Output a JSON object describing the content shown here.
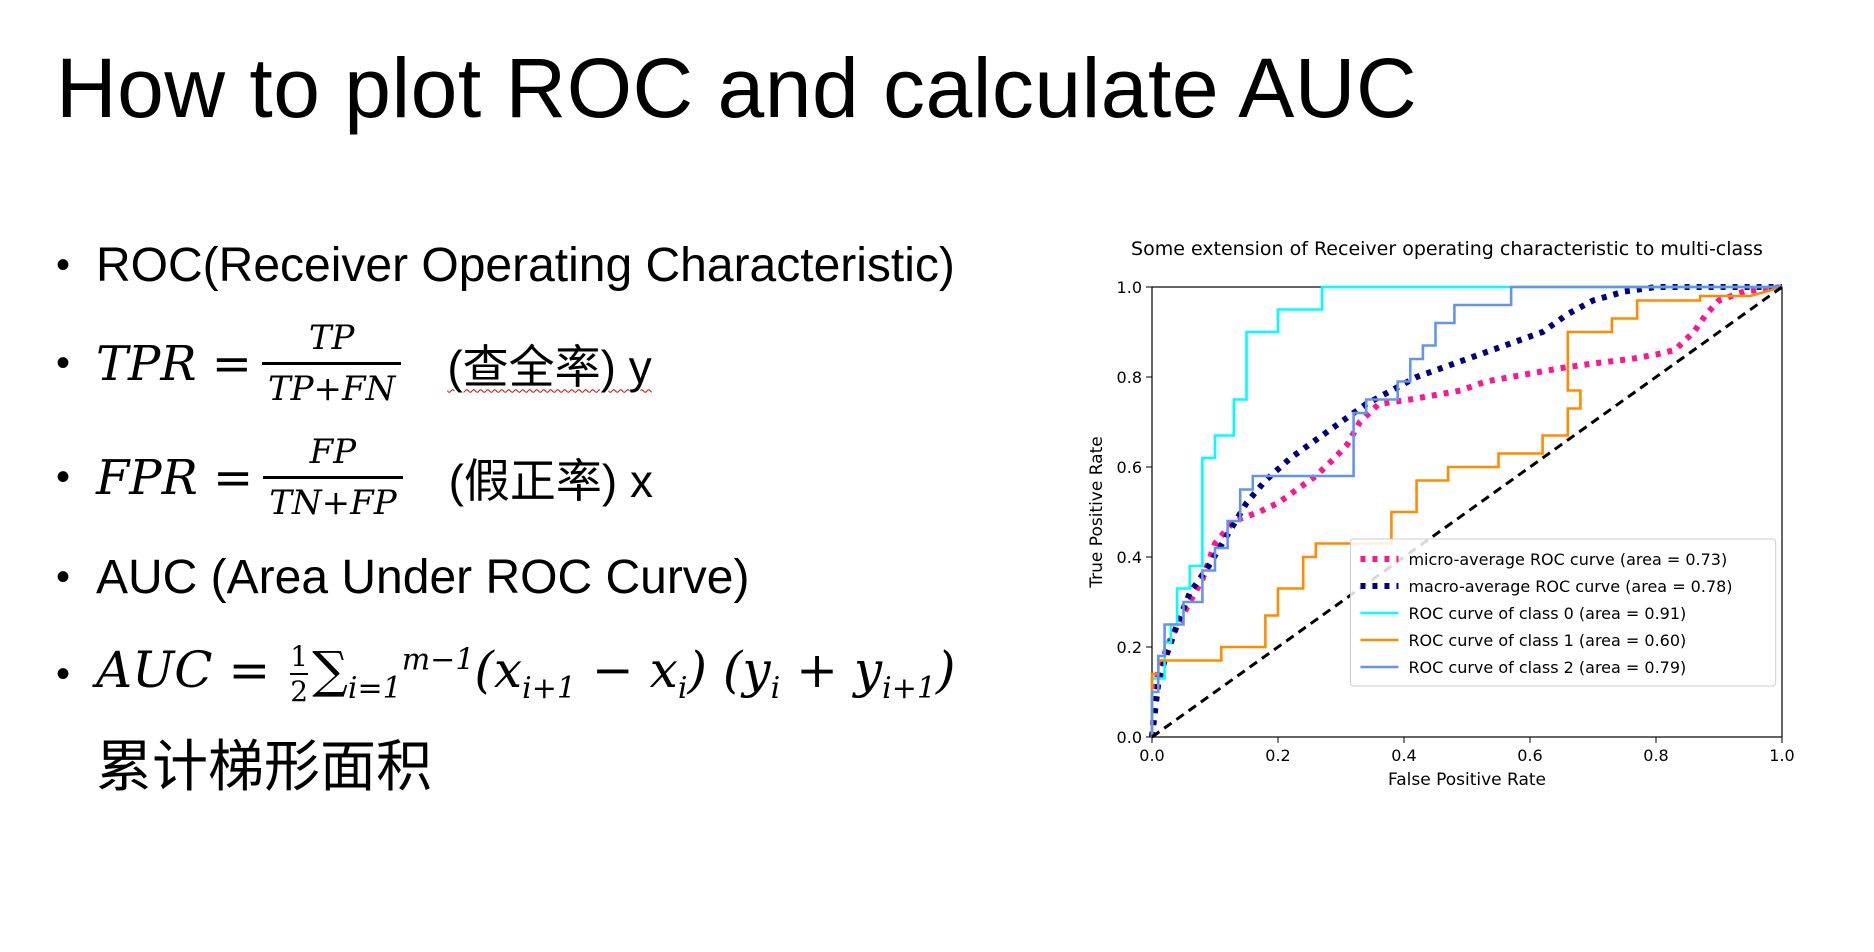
{
  "slide": {
    "title": "How to plot ROC and calculate AUC",
    "bullet_roc": "ROC(Receiver Operating Characteristic)",
    "tpr": {
      "lhs": "TPR =",
      "num": "TP",
      "den": "TP+FN",
      "note": "(查全率) y"
    },
    "fpr": {
      "lhs": "FPR =",
      "num": "FP",
      "den": "TN+FP",
      "note": "(假正率) x"
    },
    "bullet_auc": "AUC (Area Under ROC Curve)",
    "auc_formula": {
      "lhs": "AUC =",
      "num": "1",
      "den": "2",
      "sum": "∑",
      "sub": "i=1",
      "sup": "m−1",
      "body": "(x",
      "sub1": "i+1",
      "mid": " − x",
      "sub2": "i",
      "mid2": ") (y",
      "sub3": "i",
      "mid3": " + y",
      "sub4": "i+1",
      "end": ")"
    },
    "auc_caption": "累计梯形面积"
  },
  "chart_data": {
    "type": "line",
    "title": "Some extension of Receiver operating characteristic to multi-class",
    "xlabel": "False Positive Rate",
    "ylabel": "True Positive Rate",
    "xlim": [
      0.0,
      1.0
    ],
    "ylim": [
      0.0,
      1.0
    ],
    "xticks": [
      "0.0",
      "0.2",
      "0.4",
      "0.6",
      "0.8",
      "1.0"
    ],
    "yticks": [
      "0.0",
      "0.2",
      "0.4",
      "0.6",
      "0.8",
      "1.0"
    ],
    "legend_position": "lower-right",
    "series": [
      {
        "name": "micro-average ROC curve (area = 0.73)",
        "color": "#ff1493",
        "style": "dotted",
        "points": [
          [
            0,
            0
          ],
          [
            0.005,
            0.1
          ],
          [
            0.01,
            0.15
          ],
          [
            0.03,
            0.22
          ],
          [
            0.06,
            0.3
          ],
          [
            0.08,
            0.35
          ],
          [
            0.1,
            0.43
          ],
          [
            0.13,
            0.48
          ],
          [
            0.17,
            0.5
          ],
          [
            0.2,
            0.52
          ],
          [
            0.23,
            0.55
          ],
          [
            0.26,
            0.58
          ],
          [
            0.29,
            0.62
          ],
          [
            0.31,
            0.65
          ],
          [
            0.33,
            0.7
          ],
          [
            0.36,
            0.74
          ],
          [
            0.41,
            0.75
          ],
          [
            0.45,
            0.76
          ],
          [
            0.49,
            0.77
          ],
          [
            0.53,
            0.79
          ],
          [
            0.57,
            0.8
          ],
          [
            0.61,
            0.81
          ],
          [
            0.65,
            0.82
          ],
          [
            0.7,
            0.83
          ],
          [
            0.76,
            0.84
          ],
          [
            0.8,
            0.85
          ],
          [
            0.83,
            0.86
          ],
          [
            0.86,
            0.9
          ],
          [
            0.88,
            0.94
          ],
          [
            0.9,
            0.97
          ],
          [
            0.94,
            0.99
          ],
          [
            1,
            1
          ]
        ]
      },
      {
        "name": "macro-average ROC curve (area = 0.78)",
        "color": "#000080",
        "style": "dotted",
        "points": [
          [
            0,
            0
          ],
          [
            0.01,
            0.12
          ],
          [
            0.02,
            0.17
          ],
          [
            0.04,
            0.25
          ],
          [
            0.06,
            0.32
          ],
          [
            0.09,
            0.38
          ],
          [
            0.12,
            0.45
          ],
          [
            0.15,
            0.52
          ],
          [
            0.18,
            0.57
          ],
          [
            0.22,
            0.62
          ],
          [
            0.26,
            0.66
          ],
          [
            0.3,
            0.7
          ],
          [
            0.34,
            0.74
          ],
          [
            0.38,
            0.77
          ],
          [
            0.42,
            0.8
          ],
          [
            0.46,
            0.82
          ],
          [
            0.5,
            0.84
          ],
          [
            0.54,
            0.86
          ],
          [
            0.58,
            0.88
          ],
          [
            0.62,
            0.9
          ],
          [
            0.66,
            0.94
          ],
          [
            0.7,
            0.97
          ],
          [
            0.75,
            0.99
          ],
          [
            0.8,
            1.0
          ],
          [
            1,
            1
          ]
        ]
      },
      {
        "name": "ROC curve of class 0 (area = 0.91)",
        "color": "#00ffff",
        "style": "solid",
        "points": [
          [
            0,
            0
          ],
          [
            0,
            0.13
          ],
          [
            0.02,
            0.13
          ],
          [
            0.02,
            0.21
          ],
          [
            0.03,
            0.21
          ],
          [
            0.03,
            0.25
          ],
          [
            0.04,
            0.25
          ],
          [
            0.04,
            0.33
          ],
          [
            0.06,
            0.33
          ],
          [
            0.06,
            0.38
          ],
          [
            0.08,
            0.38
          ],
          [
            0.08,
            0.62
          ],
          [
            0.1,
            0.62
          ],
          [
            0.1,
            0.67
          ],
          [
            0.13,
            0.67
          ],
          [
            0.13,
            0.75
          ],
          [
            0.15,
            0.75
          ],
          [
            0.15,
            0.9
          ],
          [
            0.2,
            0.9
          ],
          [
            0.2,
            0.95
          ],
          [
            0.27,
            0.95
          ],
          [
            0.27,
            1.0
          ],
          [
            1,
            1
          ]
        ]
      },
      {
        "name": "ROC curve of class 1 (area = 0.60)",
        "color": "#ff8c00",
        "style": "solid",
        "points": [
          [
            0,
            0
          ],
          [
            0,
            0.14
          ],
          [
            0.01,
            0.14
          ],
          [
            0.01,
            0.17
          ],
          [
            0.11,
            0.17
          ],
          [
            0.11,
            0.2
          ],
          [
            0.18,
            0.2
          ],
          [
            0.18,
            0.27
          ],
          [
            0.2,
            0.27
          ],
          [
            0.2,
            0.33
          ],
          [
            0.24,
            0.33
          ],
          [
            0.24,
            0.4
          ],
          [
            0.26,
            0.4
          ],
          [
            0.26,
            0.43
          ],
          [
            0.38,
            0.43
          ],
          [
            0.38,
            0.5
          ],
          [
            0.42,
            0.5
          ],
          [
            0.42,
            0.57
          ],
          [
            0.47,
            0.57
          ],
          [
            0.47,
            0.6
          ],
          [
            0.55,
            0.6
          ],
          [
            0.55,
            0.63
          ],
          [
            0.62,
            0.63
          ],
          [
            0.62,
            0.67
          ],
          [
            0.66,
            0.67
          ],
          [
            0.66,
            0.73
          ],
          [
            0.68,
            0.73
          ],
          [
            0.68,
            0.77
          ],
          [
            0.66,
            0.77
          ],
          [
            0.66,
            0.9
          ],
          [
            0.73,
            0.9
          ],
          [
            0.73,
            0.93
          ],
          [
            0.77,
            0.93
          ],
          [
            0.77,
            0.97
          ],
          [
            0.87,
            0.97
          ],
          [
            0.87,
            0.98
          ],
          [
            0.95,
            0.98
          ],
          [
            1,
            1
          ]
        ]
      },
      {
        "name": "ROC curve of class 2 (area = 0.79)",
        "color": "#6495ed",
        "style": "solid",
        "points": [
          [
            0,
            0
          ],
          [
            0,
            0.1
          ],
          [
            0.01,
            0.1
          ],
          [
            0.01,
            0.18
          ],
          [
            0.02,
            0.18
          ],
          [
            0.02,
            0.25
          ],
          [
            0.05,
            0.25
          ],
          [
            0.05,
            0.3
          ],
          [
            0.08,
            0.3
          ],
          [
            0.08,
            0.37
          ],
          [
            0.1,
            0.37
          ],
          [
            0.1,
            0.42
          ],
          [
            0.12,
            0.42
          ],
          [
            0.12,
            0.48
          ],
          [
            0.14,
            0.48
          ],
          [
            0.14,
            0.55
          ],
          [
            0.16,
            0.55
          ],
          [
            0.16,
            0.58
          ],
          [
            0.32,
            0.58
          ],
          [
            0.32,
            0.72
          ],
          [
            0.34,
            0.72
          ],
          [
            0.34,
            0.75
          ],
          [
            0.39,
            0.75
          ],
          [
            0.39,
            0.79
          ],
          [
            0.41,
            0.79
          ],
          [
            0.41,
            0.84
          ],
          [
            0.43,
            0.84
          ],
          [
            0.43,
            0.87
          ],
          [
            0.45,
            0.87
          ],
          [
            0.45,
            0.92
          ],
          [
            0.48,
            0.92
          ],
          [
            0.48,
            0.96
          ],
          [
            0.57,
            0.96
          ],
          [
            0.57,
            1.0
          ],
          [
            1,
            1
          ]
        ]
      },
      {
        "name": "",
        "color": "#000000",
        "style": "dashed",
        "points": [
          [
            0,
            0
          ],
          [
            1,
            1
          ]
        ]
      }
    ]
  }
}
